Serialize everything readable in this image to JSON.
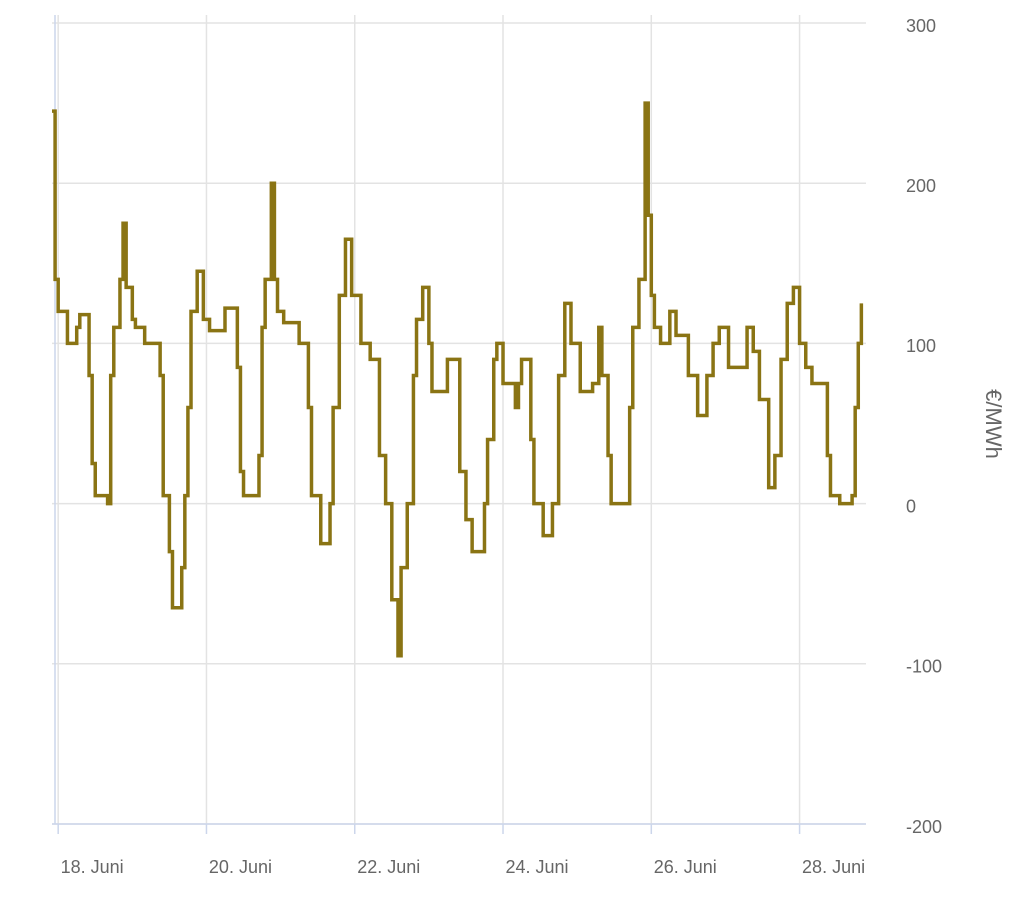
{
  "chart_data": {
    "type": "line",
    "step": true,
    "y_axis_label": "€/MWh",
    "y_axis_side": "right",
    "grid": true,
    "xlim": [
      -2,
      261.5
    ],
    "ylim": [
      -200,
      300
    ],
    "yticks": [
      -200,
      -100,
      0,
      100,
      200,
      300
    ],
    "xticks": [
      {
        "value": 0,
        "label": "18. Juni"
      },
      {
        "value": 48,
        "label": "20. Juni"
      },
      {
        "value": 96,
        "label": "22. Juni"
      },
      {
        "value": 144,
        "label": "24. Juni"
      },
      {
        "value": 192,
        "label": "26. Juni"
      },
      {
        "value": 240,
        "label": "28. Juni"
      }
    ],
    "series": [
      {
        "color": "#8a7414",
        "x": [
          -2,
          -1,
          0,
          3,
          6,
          7,
          10,
          11,
          12,
          16,
          17,
          18,
          20,
          21,
          22,
          24,
          25,
          28,
          33,
          34,
          36,
          37,
          40,
          41,
          42,
          43,
          45,
          47,
          49,
          54,
          58,
          59,
          60,
          65,
          66,
          67,
          69,
          70,
          71,
          73,
          78,
          81,
          82,
          85,
          88,
          89,
          91,
          93,
          95,
          98,
          101,
          104,
          106,
          108,
          110,
          111,
          113,
          115,
          116,
          118,
          120,
          121,
          126,
          130,
          132,
          134,
          138,
          139,
          141,
          142,
          144,
          148,
          149,
          150,
          153,
          154,
          157,
          160,
          162,
          164,
          166,
          169,
          173,
          175,
          176,
          178,
          179,
          185,
          186,
          188,
          190,
          191,
          192,
          193,
          195,
          198,
          200,
          204,
          207,
          210,
          212,
          214,
          217,
          220,
          223,
          225,
          227,
          230,
          232,
          234,
          236,
          238,
          240,
          242,
          244,
          249,
          250,
          253,
          257,
          258,
          259,
          260
        ],
        "values": [
          245,
          140,
          120,
          100,
          110,
          118,
          80,
          25,
          5,
          0,
          80,
          110,
          140,
          175,
          135,
          115,
          110,
          100,
          80,
          5,
          -30,
          -65,
          -40,
          5,
          60,
          120,
          145,
          115,
          108,
          122,
          85,
          20,
          5,
          30,
          110,
          140,
          200,
          140,
          120,
          113,
          100,
          60,
          5,
          -25,
          0,
          60,
          130,
          165,
          130,
          100,
          90,
          30,
          0,
          -60,
          -95,
          -40,
          0,
          80,
          115,
          135,
          100,
          70,
          90,
          20,
          -10,
          -30,
          0,
          40,
          90,
          100,
          75,
          60,
          75,
          90,
          40,
          0,
          -20,
          0,
          80,
          125,
          100,
          70,
          75,
          110,
          80,
          30,
          0,
          60,
          110,
          140,
          250,
          180,
          130,
          110,
          100,
          120,
          105,
          80,
          55,
          80,
          100,
          110,
          85,
          85,
          110,
          95,
          65,
          10,
          30,
          90,
          125,
          135,
          100,
          85,
          75,
          30,
          5,
          0,
          5,
          60,
          100,
          125
        ]
      }
    ]
  }
}
